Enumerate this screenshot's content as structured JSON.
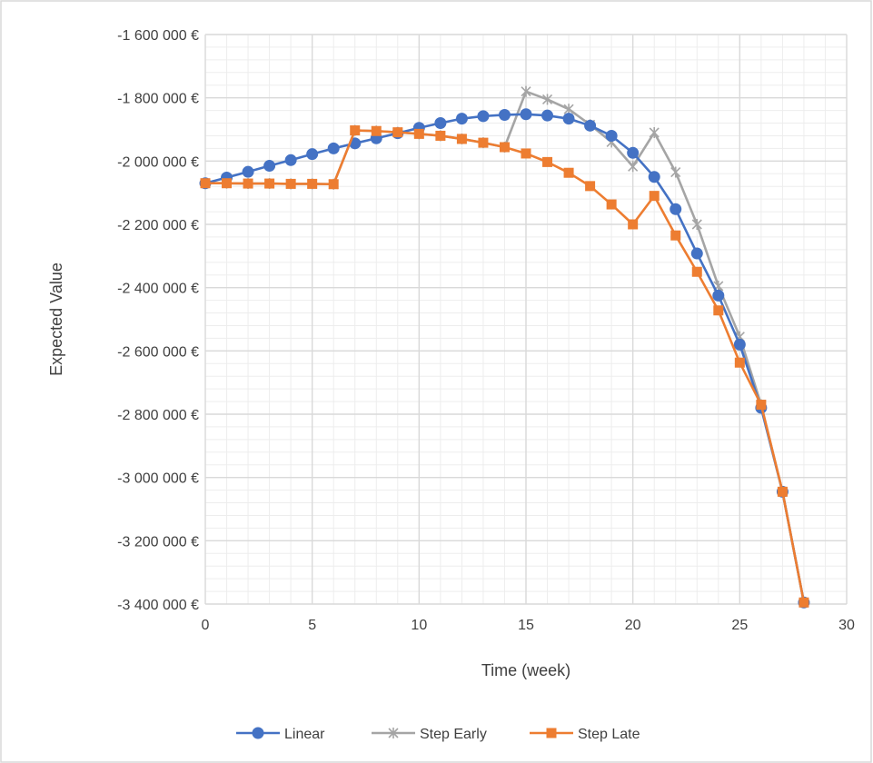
{
  "chart_data": {
    "type": "line",
    "xlabel": "Time (week)",
    "ylabel": "Expected Value",
    "xlim": [
      0,
      30
    ],
    "ylim": [
      -3400000,
      -1600000
    ],
    "x_ticks": [
      0,
      5,
      10,
      15,
      20,
      25,
      30
    ],
    "x_tick_labels": [
      "0",
      "5",
      "10",
      "15",
      "20",
      "25",
      "30"
    ],
    "y_ticks": [
      -1600000,
      -1800000,
      -2000000,
      -2200000,
      -2400000,
      -2600000,
      -2800000,
      -3000000,
      -3200000,
      -3400000
    ],
    "y_tick_labels": [
      "-1 600 000 €",
      "-1 800 000 €",
      "-2 000 000 €",
      "-2 200 000 €",
      "-2 400 000 €",
      "-2 600 000 €",
      "-2 800 000 €",
      "-3 000 000 €",
      "-3 200 000 €",
      "-3 400 000 €"
    ],
    "grid": "major and minor",
    "legend_position": "bottom",
    "series": [
      {
        "name": "Linear",
        "color": "#4472c4",
        "marker": "circle",
        "x": [
          0,
          1,
          2,
          3,
          4,
          5,
          6,
          7,
          8,
          9,
          10,
          11,
          12,
          13,
          14,
          15,
          16,
          17,
          18,
          19,
          20,
          21,
          22,
          23,
          24,
          25,
          26,
          27,
          28
        ],
        "y": [
          -2070000,
          -2052000,
          -2034000,
          -2015000,
          -1997000,
          -1978000,
          -1960000,
          -1944000,
          -1928000,
          -1912000,
          -1895000,
          -1880000,
          -1866000,
          -1858000,
          -1854000,
          -1852000,
          -1856000,
          -1866000,
          -1888000,
          -1920000,
          -1974000,
          -2050000,
          -2152000,
          -2292000,
          -2425000,
          -2580000,
          -2780000,
          -3045000,
          -3395000
        ]
      },
      {
        "name": "Step Early",
        "color": "#a5a5a5",
        "marker": "x",
        "x": [
          0,
          1,
          2,
          3,
          4,
          5,
          6,
          7,
          8,
          9,
          10,
          11,
          12,
          13,
          14,
          15,
          16,
          17,
          18,
          19,
          20,
          21,
          22,
          23,
          24,
          25,
          26,
          27,
          28
        ],
        "y": [
          -2070000,
          -2070000,
          -2071000,
          -2071000,
          -2072000,
          -2072000,
          -2073000,
          -1903000,
          -1905000,
          -1909000,
          -1914000,
          -1920000,
          -1930000,
          -1942000,
          -1956000,
          -1780000,
          -1805000,
          -1836000,
          -1885000,
          -1940000,
          -2017000,
          -1910000,
          -2035000,
          -2200000,
          -2395000,
          -2555000,
          -2770000,
          -3045000,
          -3395000
        ]
      },
      {
        "name": "Step Late",
        "color": "#ed7d31",
        "marker": "square",
        "x": [
          0,
          1,
          2,
          3,
          4,
          5,
          6,
          7,
          8,
          9,
          10,
          11,
          12,
          13,
          14,
          15,
          16,
          17,
          18,
          19,
          20,
          21,
          22,
          23,
          24,
          25,
          26,
          27,
          28
        ],
        "y": [
          -2070000,
          -2070000,
          -2071000,
          -2071000,
          -2072000,
          -2072000,
          -2073000,
          -1903000,
          -1905000,
          -1909000,
          -1914000,
          -1920000,
          -1930000,
          -1942000,
          -1956000,
          -1976000,
          -2003000,
          -2037000,
          -2079000,
          -2137000,
          -2200000,
          -2110000,
          -2235000,
          -2350000,
          -2472000,
          -2637000,
          -2770000,
          -3045000,
          -3395000
        ]
      }
    ]
  }
}
